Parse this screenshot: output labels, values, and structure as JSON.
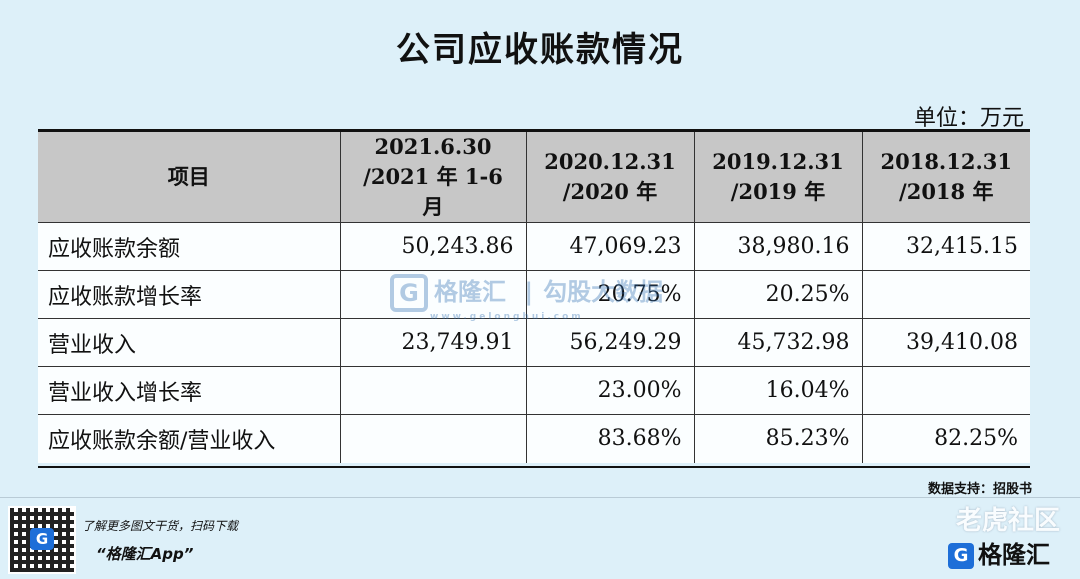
{
  "title": "公司应收账款情况",
  "unit": "单位：万元",
  "table": {
    "header": {
      "item": "项目",
      "cols": [
        {
          "line1": "2021.6.30",
          "line2": "/2021 年 1-6 月"
        },
        {
          "line1": "2020.12.31",
          "line2": "/2020 年"
        },
        {
          "line1": "2019.12.31",
          "line2": "/2019 年"
        },
        {
          "line1": "2018.12.31",
          "line2": "/2018 年"
        }
      ]
    },
    "rows": [
      {
        "label": "应收账款余额",
        "values": [
          "50,243.86",
          "47,069.23",
          "38,980.16",
          "32,415.15"
        ]
      },
      {
        "label": "应收账款增长率",
        "values": [
          "",
          "20.75%",
          "20.25%",
          ""
        ]
      },
      {
        "label": "营业收入",
        "values": [
          "23,749.91",
          "56,249.29",
          "45,732.98",
          "39,410.08"
        ]
      },
      {
        "label": "营业收入增长率",
        "values": [
          "",
          "23.00%",
          "16.04%",
          ""
        ]
      },
      {
        "label": "应收账款余额/营业收入",
        "values": [
          "",
          "83.68%",
          "85.23%",
          "82.25%"
        ]
      }
    ]
  },
  "source": "数据支持：招股书",
  "footer": {
    "line1": "了解更多图文干货，扫码下载",
    "line2": "“格隆汇App”",
    "qr_mark": "G"
  },
  "watermark": {
    "brand": "格隆汇",
    "slogan": "勾股大数据",
    "url": "www.gelonghui.com",
    "mark": "G",
    "right_top": "老虎社区",
    "right_bottom": "格隆汇"
  }
}
